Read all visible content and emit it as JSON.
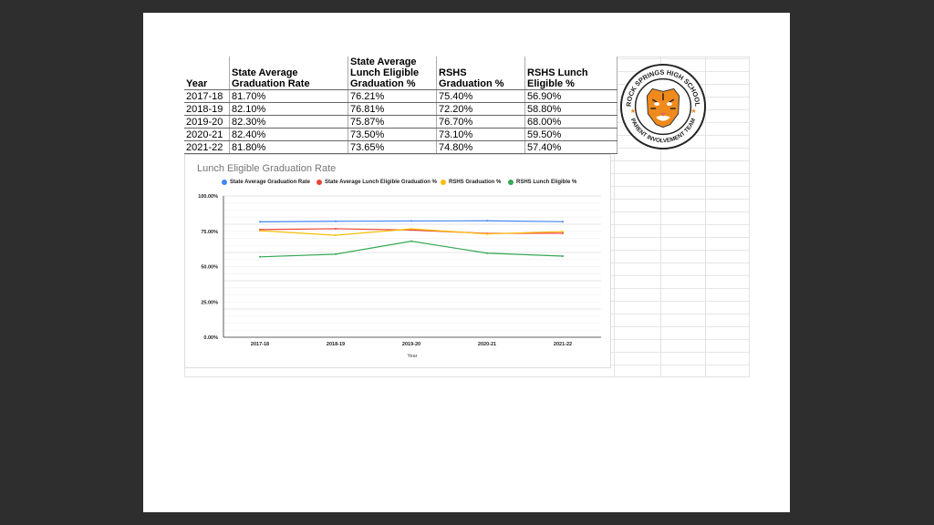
{
  "table": {
    "headers": [
      "Year",
      "State Average Graduation Rate",
      "State Average Lunch Eligible Graduation %",
      "RSHS Graduation %",
      "RSHS Lunch Eligible %"
    ],
    "rows": [
      [
        "2017-18",
        "81.70%",
        "76.21%",
        "75.40%",
        "56.90%"
      ],
      [
        "2018-19",
        "82.10%",
        "76.81%",
        "72.20%",
        "58.80%"
      ],
      [
        "2019-20",
        "82.30%",
        "75.87%",
        "76.70%",
        "68.00%"
      ],
      [
        "2020-21",
        "82.40%",
        "73.50%",
        "73.10%",
        "59.50%"
      ],
      [
        "2021-22",
        "81.80%",
        "73.65%",
        "74.80%",
        "57.40%"
      ]
    ]
  },
  "logo": {
    "top_text": "ROCK SPRINGS HIGH SCHOOL",
    "bottom_text": "PARENT INVOLVEMENT TEAM"
  },
  "chart_data": {
    "type": "line",
    "title": "Lunch Eligible Graduation Rate",
    "xlabel": "Year",
    "ylabel": "",
    "categories": [
      "2017-18",
      "2018-19",
      "2019-20",
      "2020-21",
      "2021-22"
    ],
    "ylim": [
      0,
      100
    ],
    "yticks": [
      "0.00%",
      "25.00%",
      "50.00%",
      "75.00%",
      "100.00%"
    ],
    "legend_position": "top",
    "series": [
      {
        "name": "State Average Graduation Rate",
        "color": "#4285f4",
        "values": [
          81.7,
          82.1,
          82.3,
          82.4,
          81.8
        ]
      },
      {
        "name": "State Average Lunch Eligible Graduation %",
        "color": "#ea4335",
        "values": [
          76.21,
          76.81,
          75.87,
          73.5,
          73.65
        ]
      },
      {
        "name": "RSHS Graduation %",
        "color": "#fbbc04",
        "values": [
          75.4,
          72.2,
          76.7,
          73.1,
          74.8
        ]
      },
      {
        "name": "RSHS Lunch Eligible %",
        "color": "#34a853",
        "values": [
          56.9,
          58.8,
          68.0,
          59.5,
          57.4
        ]
      }
    ]
  }
}
